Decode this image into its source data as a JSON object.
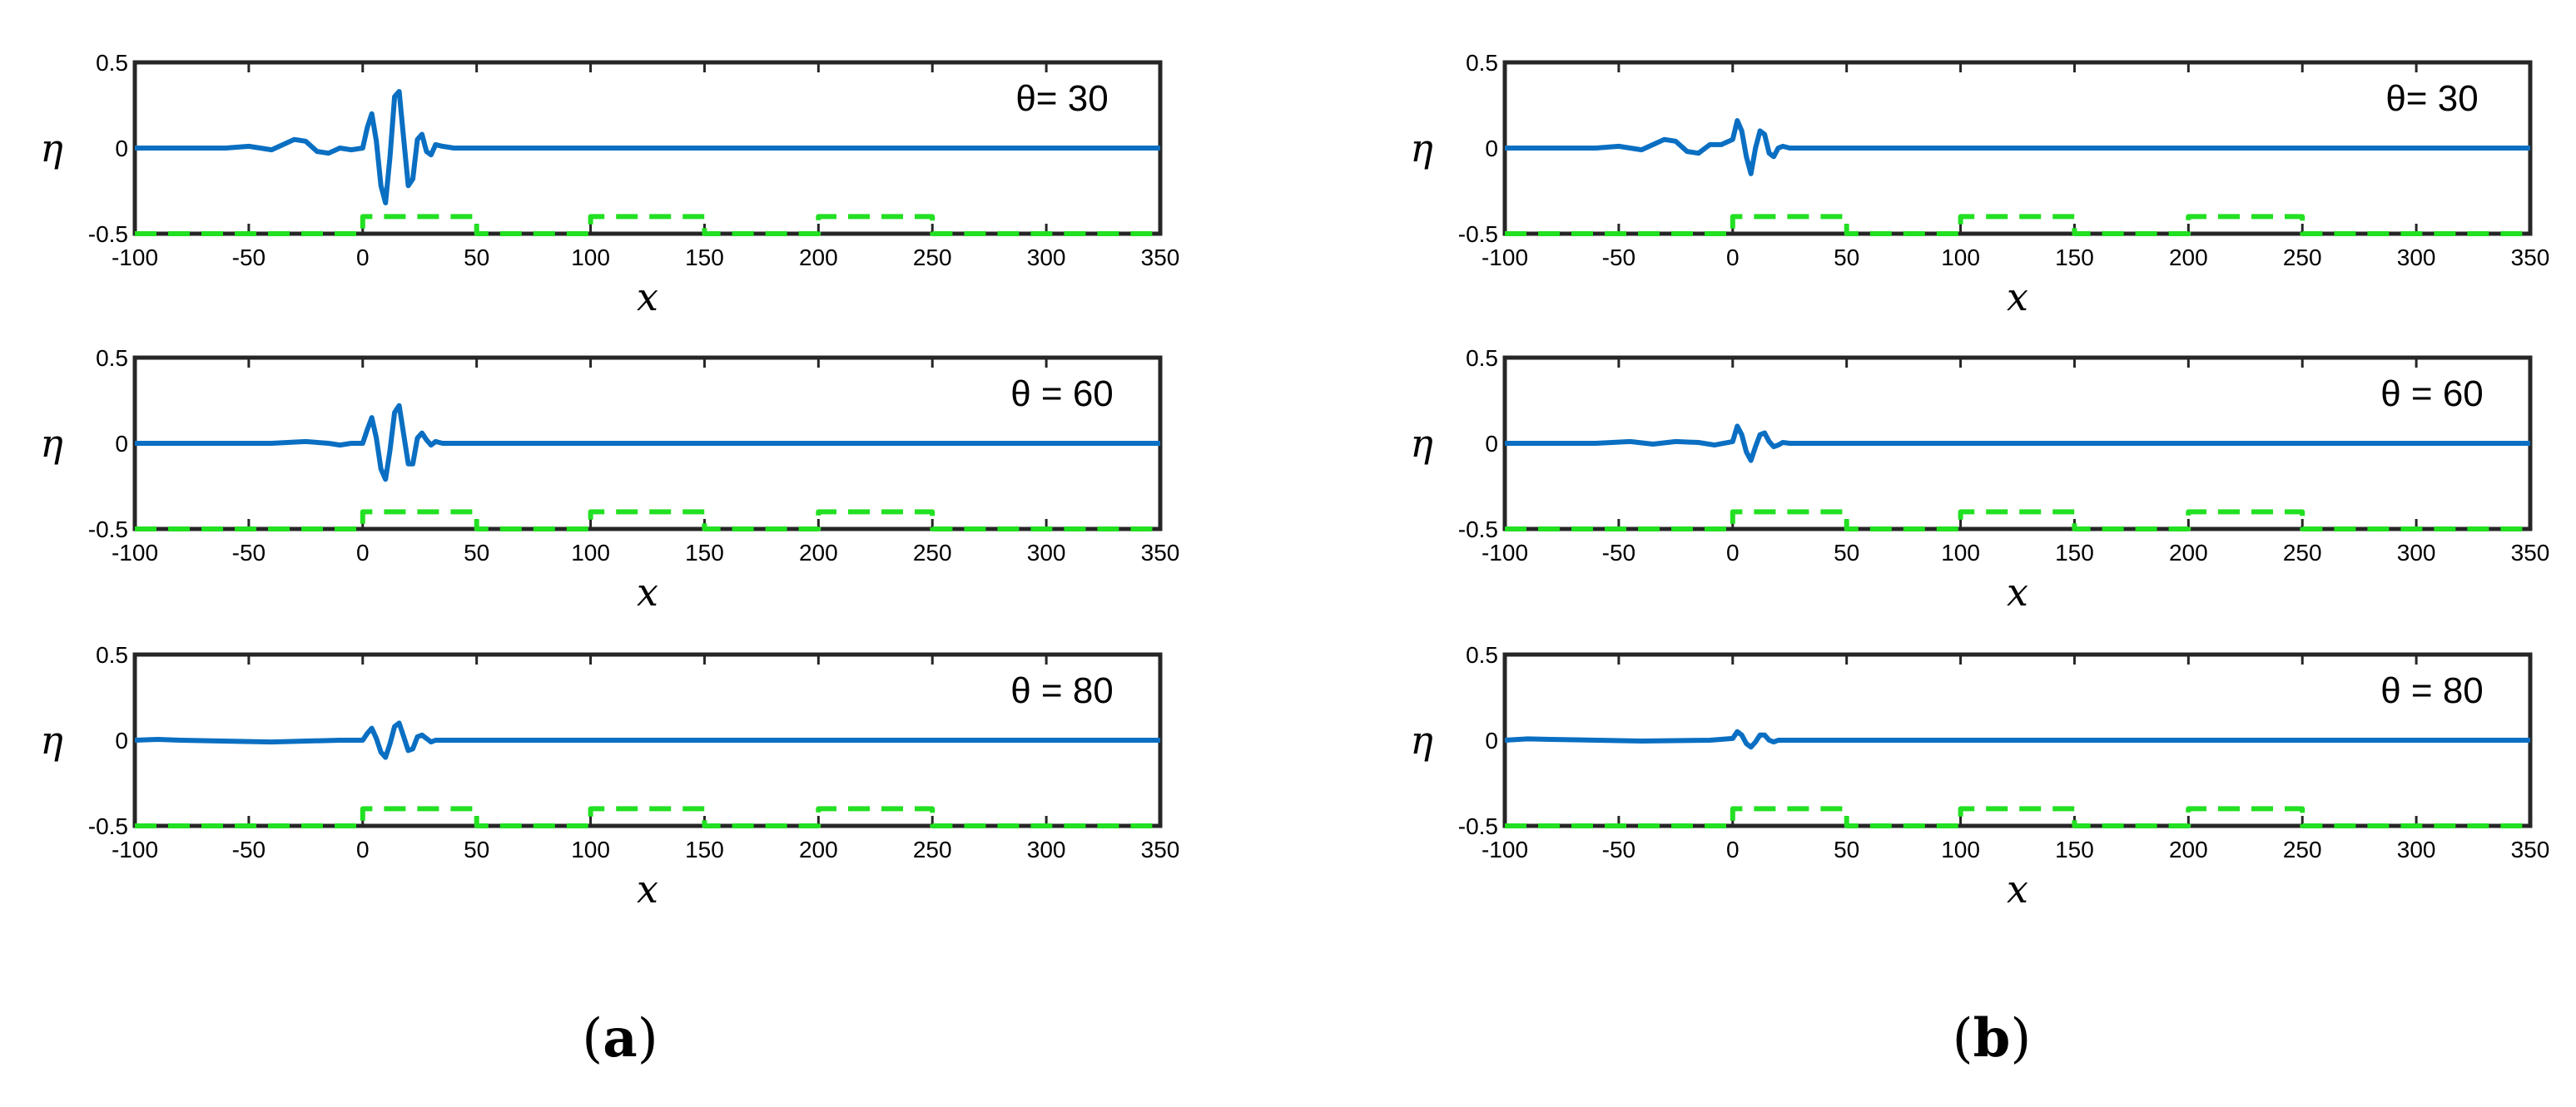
{
  "chart_data": [
    {
      "type": "line",
      "panel": "a",
      "annotation": "θ= 30",
      "xlabel": "x",
      "ylabel": "η",
      "xlim": [
        -100,
        350
      ],
      "ylim": [
        -0.5,
        0.5
      ],
      "xticks": [
        -100,
        -50,
        0,
        50,
        100,
        150,
        200,
        250,
        300,
        350
      ],
      "yticks": [
        0.5,
        0,
        -0.5
      ],
      "series": [
        {
          "color": "#0a6fc2",
          "style": "solid",
          "x": [
            -100,
            -60,
            -50,
            -40,
            -35,
            -30,
            -25,
            -20,
            -15,
            -10,
            -5,
            0,
            2,
            4,
            6,
            8,
            10,
            12,
            14,
            16,
            18,
            20,
            22,
            24,
            26,
            28,
            30,
            32,
            35,
            40,
            350
          ],
          "y": [
            0,
            0,
            0.01,
            -0.01,
            0.02,
            0.05,
            0.04,
            -0.02,
            -0.03,
            0.0,
            -0.01,
            0.0,
            0.12,
            0.2,
            0.04,
            -0.22,
            -0.32,
            -0.05,
            0.3,
            0.33,
            0.05,
            -0.22,
            -0.18,
            0.05,
            0.08,
            -0.02,
            -0.04,
            0.02,
            0.01,
            0,
            0
          ]
        },
        {
          "color": "#22e022",
          "style": "dashed",
          "x": [
            -100,
            0,
            0,
            50,
            50,
            100,
            100,
            150,
            150,
            200,
            200,
            250,
            250,
            350
          ],
          "y": [
            -0.5,
            -0.5,
            -0.4,
            -0.4,
            -0.5,
            -0.5,
            -0.4,
            -0.4,
            -0.5,
            -0.5,
            -0.4,
            -0.4,
            -0.5,
            -0.5
          ]
        }
      ]
    },
    {
      "type": "line",
      "panel": "a",
      "annotation": "θ = 60",
      "xlabel": "x",
      "ylabel": "η",
      "xlim": [
        -100,
        350
      ],
      "ylim": [
        -0.5,
        0.5
      ],
      "xticks": [
        -100,
        -50,
        0,
        50,
        100,
        150,
        200,
        250,
        300,
        350
      ],
      "yticks": [
        0.5,
        0,
        -0.5
      ],
      "series": [
        {
          "color": "#0a6fc2",
          "style": "solid",
          "x": [
            -100,
            -40,
            -25,
            -15,
            -10,
            -5,
            0,
            2,
            4,
            6,
            8,
            10,
            12,
            14,
            16,
            18,
            20,
            22,
            24,
            26,
            28,
            30,
            32,
            35,
            40,
            350
          ],
          "y": [
            0,
            0,
            0.01,
            0,
            -0.01,
            0,
            0,
            0.08,
            0.15,
            0.03,
            -0.15,
            -0.21,
            -0.04,
            0.18,
            0.22,
            0.05,
            -0.12,
            -0.12,
            0.03,
            0.06,
            0.02,
            -0.01,
            0.01,
            0,
            0,
            0
          ]
        },
        {
          "color": "#22e022",
          "style": "dashed",
          "x": [
            -100,
            0,
            0,
            50,
            50,
            100,
            100,
            150,
            150,
            200,
            200,
            250,
            250,
            350
          ],
          "y": [
            -0.5,
            -0.5,
            -0.4,
            -0.4,
            -0.5,
            -0.5,
            -0.4,
            -0.4,
            -0.5,
            -0.5,
            -0.4,
            -0.4,
            -0.5,
            -0.5
          ]
        }
      ]
    },
    {
      "type": "line",
      "panel": "a",
      "annotation": "θ = 80",
      "xlabel": "x",
      "ylabel": "η",
      "xlim": [
        -100,
        350
      ],
      "ylim": [
        -0.5,
        0.5
      ],
      "xticks": [
        -100,
        -50,
        0,
        50,
        100,
        150,
        200,
        250,
        300,
        350
      ],
      "yticks": [
        0.5,
        0,
        -0.5
      ],
      "series": [
        {
          "color": "#0a6fc2",
          "style": "solid",
          "x": [
            -100,
            -90,
            -80,
            -40,
            -10,
            0,
            2,
            4,
            6,
            8,
            10,
            12,
            14,
            16,
            18,
            20,
            22,
            24,
            26,
            28,
            30,
            32,
            35,
            40,
            350
          ],
          "y": [
            0,
            0.005,
            0,
            -0.01,
            0,
            0,
            0.04,
            0.07,
            0.01,
            -0.07,
            -0.1,
            -0.02,
            0.08,
            0.1,
            0.02,
            -0.06,
            -0.05,
            0.02,
            0.03,
            0.01,
            -0.01,
            0,
            0,
            0,
            0
          ]
        },
        {
          "color": "#22e022",
          "style": "dashed",
          "x": [
            -100,
            0,
            0,
            50,
            50,
            100,
            100,
            150,
            150,
            200,
            200,
            250,
            250,
            350
          ],
          "y": [
            -0.5,
            -0.5,
            -0.4,
            -0.4,
            -0.5,
            -0.5,
            -0.4,
            -0.4,
            -0.5,
            -0.5,
            -0.4,
            -0.4,
            -0.5,
            -0.5
          ]
        }
      ]
    },
    {
      "type": "line",
      "panel": "b",
      "annotation": "θ= 30",
      "xlabel": "x",
      "ylabel": "η",
      "xlim": [
        -100,
        350
      ],
      "ylim": [
        -0.5,
        0.5
      ],
      "xticks": [
        -100,
        -50,
        0,
        50,
        100,
        150,
        200,
        250,
        300,
        350
      ],
      "yticks": [
        0.5,
        0,
        -0.5
      ],
      "series": [
        {
          "color": "#0a6fc2",
          "style": "solid",
          "x": [
            -100,
            -60,
            -50,
            -40,
            -35,
            -30,
            -25,
            -20,
            -15,
            -10,
            -5,
            0,
            2,
            4,
            6,
            8,
            10,
            12,
            14,
            16,
            18,
            20,
            22,
            25,
            30,
            350
          ],
          "y": [
            0,
            0,
            0.01,
            -0.01,
            0.02,
            0.05,
            0.04,
            -0.02,
            -0.03,
            0.02,
            0.02,
            0.05,
            0.16,
            0.1,
            -0.05,
            -0.15,
            0.0,
            0.1,
            0.08,
            -0.03,
            -0.05,
            0.0,
            0.01,
            0,
            0,
            0
          ]
        },
        {
          "color": "#22e022",
          "style": "dashed",
          "x": [
            -100,
            0,
            0,
            50,
            50,
            100,
            100,
            150,
            150,
            200,
            200,
            250,
            250,
            350
          ],
          "y": [
            -0.5,
            -0.5,
            -0.4,
            -0.4,
            -0.5,
            -0.5,
            -0.4,
            -0.4,
            -0.5,
            -0.5,
            -0.4,
            -0.4,
            -0.5,
            -0.5
          ]
        }
      ]
    },
    {
      "type": "line",
      "panel": "b",
      "annotation": "θ = 60",
      "xlabel": "x",
      "ylabel": "η",
      "xlim": [
        -100,
        350
      ],
      "ylim": [
        -0.5,
        0.5
      ],
      "xticks": [
        -100,
        -50,
        0,
        50,
        100,
        150,
        200,
        250,
        300,
        350
      ],
      "yticks": [
        0.5,
        0,
        -0.5
      ],
      "series": [
        {
          "color": "#0a6fc2",
          "style": "solid",
          "x": [
            -100,
            -60,
            -45,
            -35,
            -25,
            -15,
            -8,
            0,
            2,
            4,
            6,
            8,
            10,
            12,
            14,
            16,
            18,
            20,
            22,
            25,
            30,
            350
          ],
          "y": [
            0,
            0,
            0.01,
            -0.005,
            0.01,
            0.005,
            -0.01,
            0.01,
            0.1,
            0.05,
            -0.05,
            -0.1,
            -0.02,
            0.05,
            0.06,
            0.01,
            -0.02,
            -0.01,
            0.005,
            0,
            0,
            0
          ]
        },
        {
          "color": "#22e022",
          "style": "dashed",
          "x": [
            -100,
            0,
            0,
            50,
            50,
            100,
            100,
            150,
            150,
            200,
            200,
            250,
            250,
            350
          ],
          "y": [
            -0.5,
            -0.5,
            -0.4,
            -0.4,
            -0.5,
            -0.5,
            -0.4,
            -0.4,
            -0.5,
            -0.5,
            -0.4,
            -0.4,
            -0.5,
            -0.5
          ]
        }
      ]
    },
    {
      "type": "line",
      "panel": "b",
      "annotation": "θ = 80",
      "xlabel": "x",
      "ylabel": "η",
      "xlim": [
        -100,
        350
      ],
      "ylim": [
        -0.5,
        0.5
      ],
      "xticks": [
        -100,
        -50,
        0,
        50,
        100,
        150,
        200,
        250,
        300,
        350
      ],
      "yticks": [
        0.5,
        0,
        -0.5
      ],
      "series": [
        {
          "color": "#0a6fc2",
          "style": "solid",
          "x": [
            -100,
            -90,
            -80,
            -40,
            -10,
            0,
            2,
            4,
            6,
            8,
            10,
            12,
            14,
            16,
            18,
            20,
            22,
            25,
            30,
            350
          ],
          "y": [
            0,
            0.008,
            0.005,
            -0.005,
            0,
            0.01,
            0.05,
            0.03,
            -0.02,
            -0.04,
            -0.01,
            0.03,
            0.03,
            0.0,
            -0.01,
            0,
            0,
            0,
            0,
            0
          ]
        },
        {
          "color": "#22e022",
          "style": "dashed",
          "x": [
            -100,
            0,
            0,
            50,
            50,
            100,
            100,
            150,
            150,
            200,
            200,
            250,
            250,
            350
          ],
          "y": [
            -0.5,
            -0.5,
            -0.4,
            -0.4,
            -0.5,
            -0.5,
            -0.4,
            -0.4,
            -0.5,
            -0.5,
            -0.4,
            -0.4,
            -0.5,
            -0.5
          ]
        }
      ]
    }
  ],
  "panel_labels": {
    "a": {
      "open": "(",
      "letter": "a",
      "close": ")"
    },
    "b": {
      "open": "(",
      "letter": "b",
      "close": ")"
    }
  }
}
